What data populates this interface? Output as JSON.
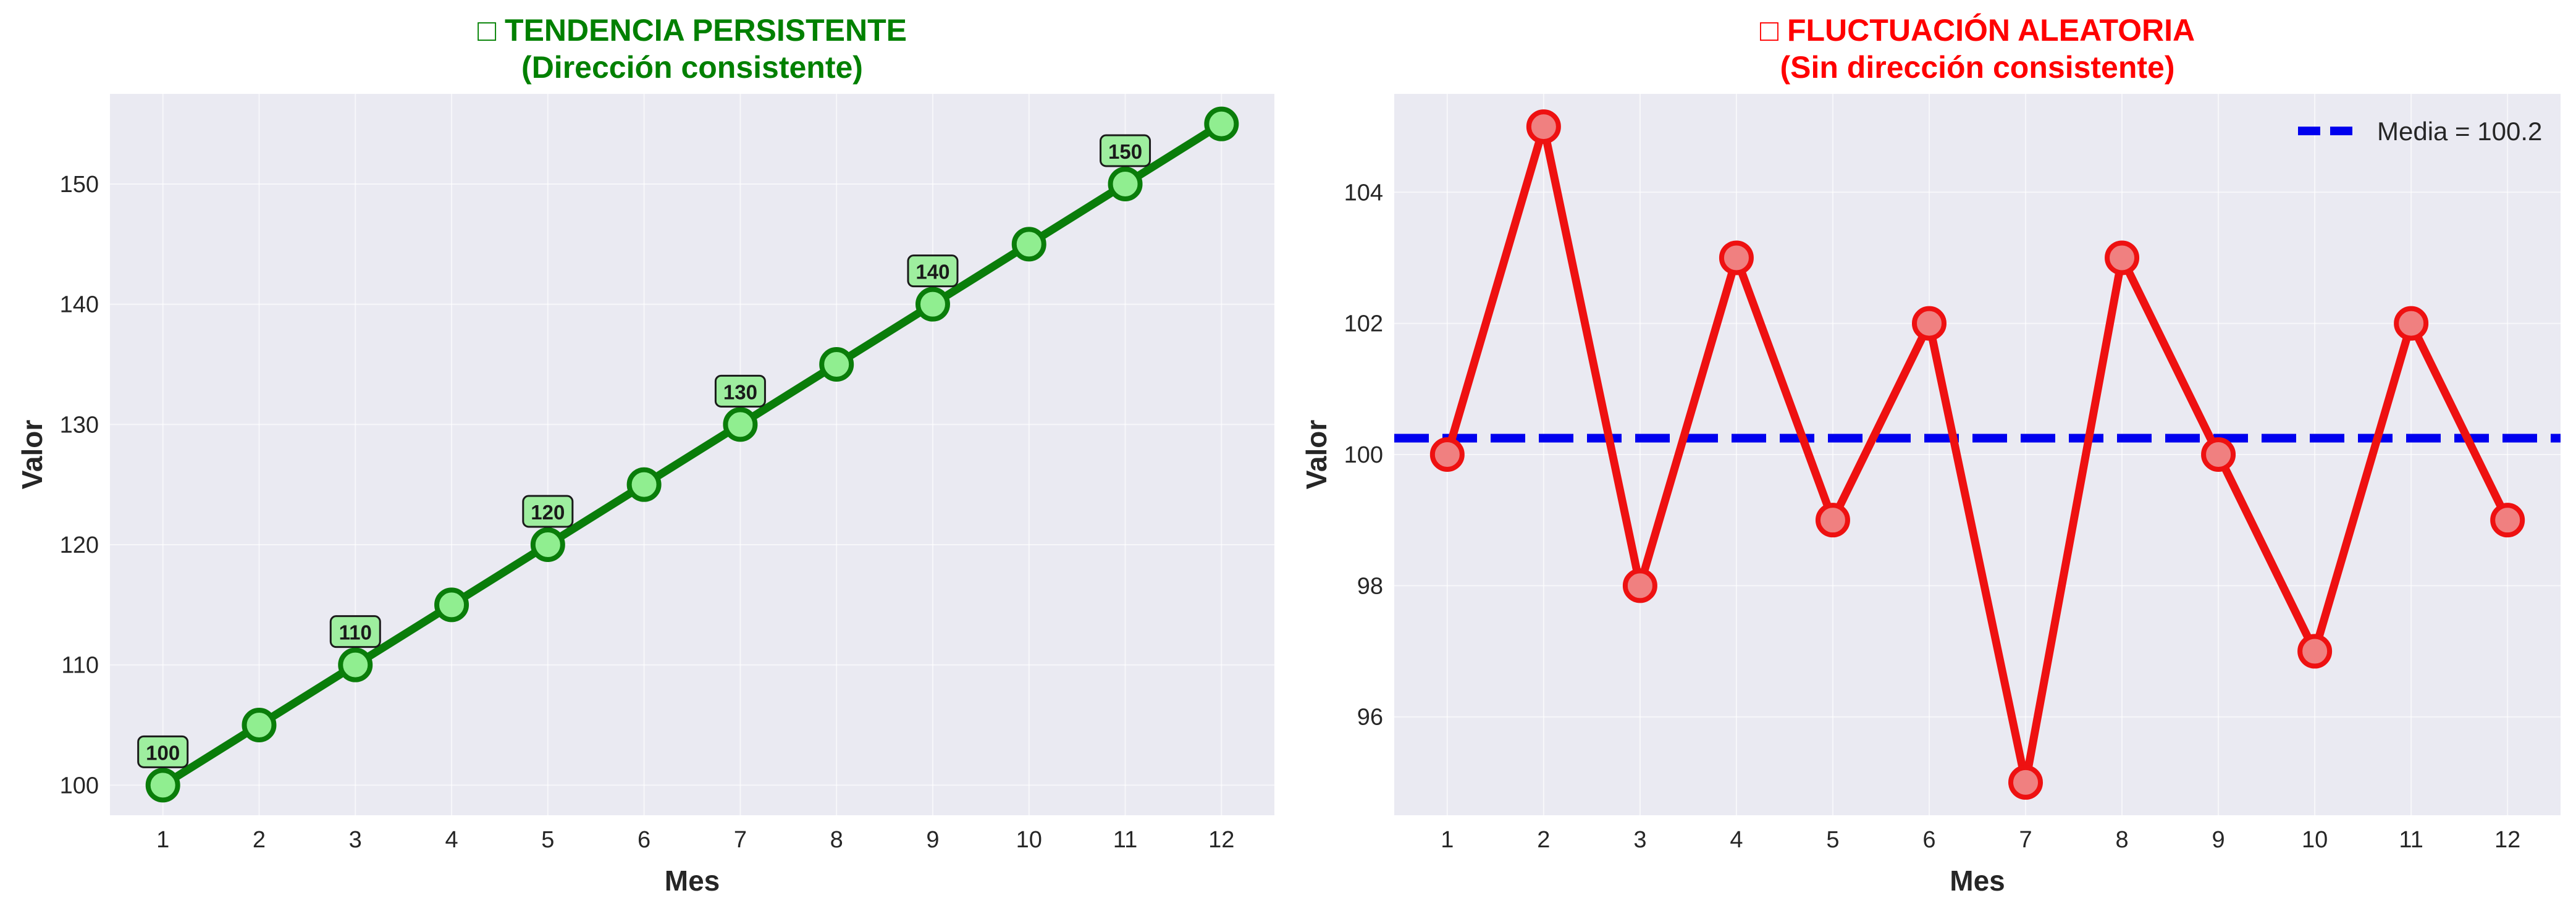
{
  "chart_data": [
    {
      "type": "line",
      "title_icon": "□",
      "title": "TENDENCIA PERSISTENTE",
      "subtitle": "(Dirección consistente)",
      "title_color": "#008000",
      "xlabel": "Mes",
      "ylabel": "Valor",
      "x": [
        1,
        2,
        3,
        4,
        5,
        6,
        7,
        8,
        9,
        10,
        11,
        12
      ],
      "series": [
        {
          "values": [
            100,
            105,
            110,
            115,
            120,
            125,
            130,
            135,
            140,
            145,
            150,
            155
          ],
          "line_color": "#0a7d0a",
          "marker_fill": "#90ee90",
          "marker_edge": "#0a7d0a"
        }
      ],
      "annotations": [
        {
          "x": 1,
          "y": 100,
          "text": "100"
        },
        {
          "x": 3,
          "y": 110,
          "text": "110"
        },
        {
          "x": 5,
          "y": 120,
          "text": "120"
        },
        {
          "x": 7,
          "y": 130,
          "text": "130"
        },
        {
          "x": 9,
          "y": 140,
          "text": "140"
        },
        {
          "x": 11,
          "y": 150,
          "text": "150"
        }
      ],
      "xlim": [
        0.45,
        12.55
      ],
      "ylim": [
        97.5,
        157.5
      ],
      "yticks": [
        100,
        110,
        120,
        130,
        140,
        150
      ],
      "xticks": [
        1,
        2,
        3,
        4,
        5,
        6,
        7,
        8,
        9,
        10,
        11,
        12
      ],
      "grid": true
    },
    {
      "type": "line",
      "title_icon": "□",
      "title": "FLUCTUACIÓN ALEATORIA",
      "subtitle": "(Sin dirección consistente)",
      "title_color": "#ff0000",
      "xlabel": "Mes",
      "ylabel": "Valor",
      "x": [
        1,
        2,
        3,
        4,
        5,
        6,
        7,
        8,
        9,
        10,
        11,
        12
      ],
      "series": [
        {
          "values": [
            100,
            105,
            98,
            103,
            99,
            102,
            95,
            103,
            100,
            97,
            102,
            99
          ],
          "line_color": "#ee1111",
          "marker_fill": "#f08080",
          "marker_edge": "#ee1111"
        }
      ],
      "reference_line": {
        "y": 100.25,
        "label": "Media = 100.2",
        "color": "#0000ee"
      },
      "legend": "top-right",
      "xlim": [
        0.45,
        12.55
      ],
      "ylim": [
        94.5,
        105.5
      ],
      "yticks": [
        96,
        98,
        100,
        102,
        104
      ],
      "xticks": [
        1,
        2,
        3,
        4,
        5,
        6,
        7,
        8,
        9,
        10,
        11,
        12
      ],
      "grid": true
    }
  ]
}
